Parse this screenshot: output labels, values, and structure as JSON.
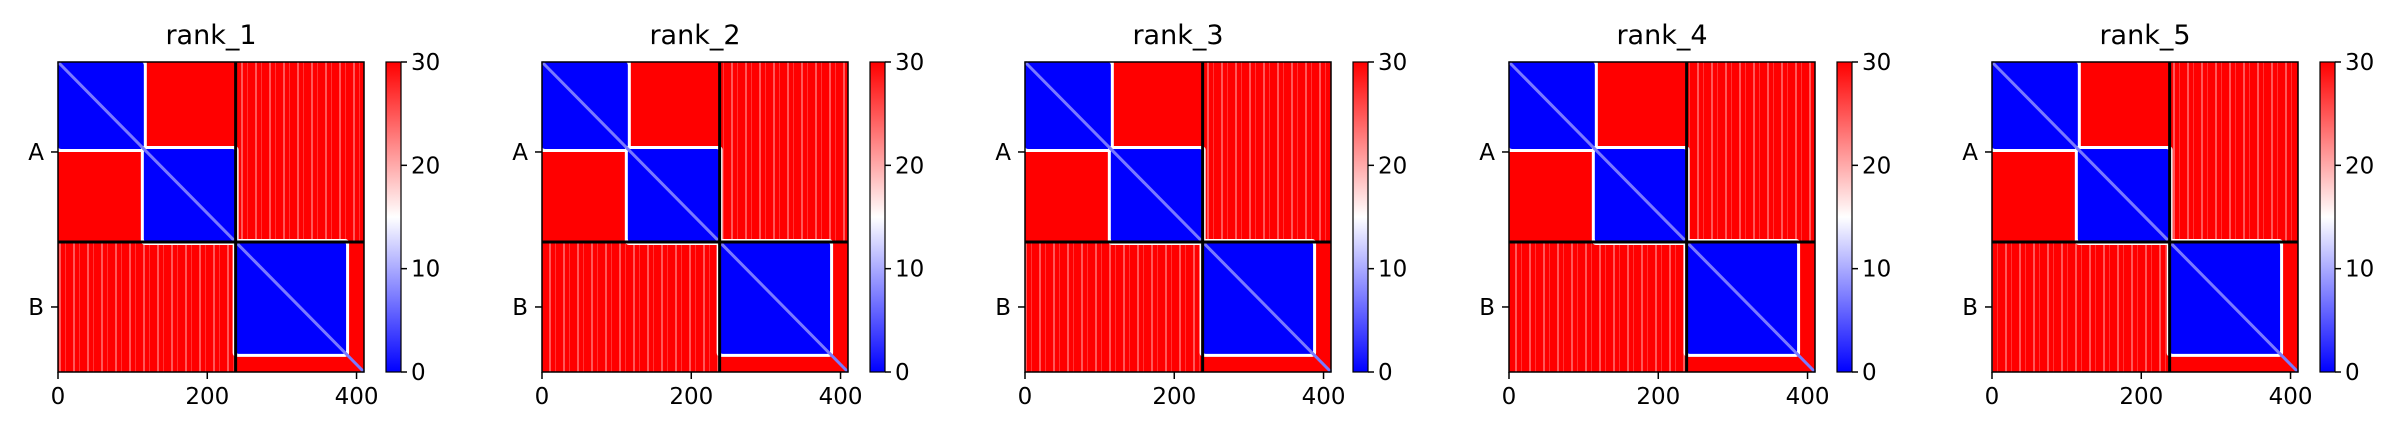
{
  "chart_data": {
    "type": "heatmap",
    "colormap": [
      "#0000ff",
      "#ffffff",
      "#ff0000"
    ],
    "colorbar": {
      "range": [
        0,
        30
      ],
      "ticks": [
        "0",
        "10",
        "20",
        "30"
      ]
    },
    "x_ticks": [
      "0",
      "200",
      "400"
    ],
    "x_range": [
      0,
      410
    ],
    "chain_boundary": 238,
    "chains": [
      {
        "label": "A",
        "start": 0,
        "end": 238
      },
      {
        "label": "B",
        "start": 238,
        "end": 410
      }
    ],
    "panels": [
      {
        "title": "rank_1"
      },
      {
        "title": "rank_2"
      },
      {
        "title": "rank_3"
      },
      {
        "title": "rank_4"
      },
      {
        "title": "rank_5"
      }
    ],
    "blocks": [
      {
        "x": [
          0,
          238
        ],
        "y": [
          0,
          238
        ],
        "low": [
          [
            0,
            115
          ],
          [
            115,
            238
          ]
        ]
      },
      {
        "x": [
          238,
          410
        ],
        "y": [
          238,
          410
        ],
        "low": [
          [
            238,
            386
          ]
        ]
      }
    ]
  }
}
